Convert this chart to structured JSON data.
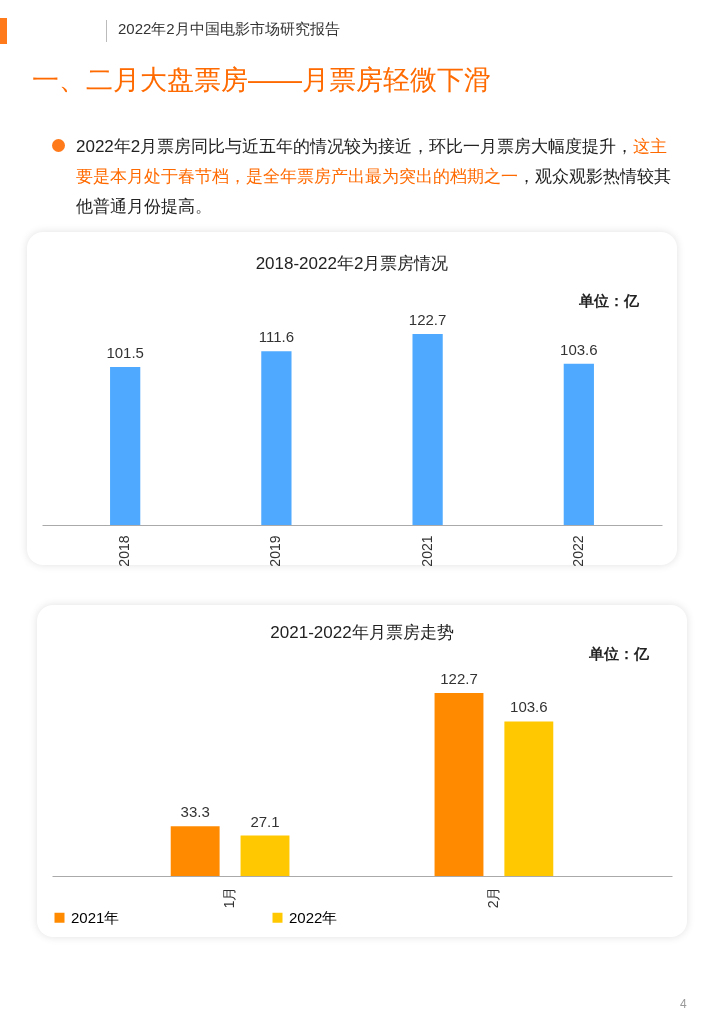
{
  "chart_data": [
    {
      "type": "bar",
      "title": "2018-2022年2月票房情况",
      "categories": [
        "2018",
        "2019",
        "2021",
        "2022"
      ],
      "values": [
        101.5,
        111.6,
        122.7,
        103.6
      ],
      "color": "#4faaff",
      "data_labels": true,
      "annotations": [
        "2022年2月中国电影市场研究报告",
        "一、二月大盘票房——月票房轻微下滑",
        "2022年2月票房同比与近五年的情况较为接近，环比一月票房大幅度提升，",
        "这主要是本月处于春节档，是全年票房产出最为突出的档期之一",
        "，观众观影热情较其他普通月份提高。",
        "单位：亿"
      ]
    },
    {
      "type": "bar",
      "title": "2021-2022年月票房走势",
      "categories": [
        "1月",
        "2月"
      ],
      "data_labels": true,
      "legend": "bottom",
      "series": [
        {
          "name": "2021年",
          "color": "#ff8a00",
          "values": [
            33.3,
            122.7
          ]
        },
        {
          "name": "2022年",
          "color": "#ffc800",
          "values": [
            27.1,
            103.6
          ]
        }
      ],
      "annotations": [
        "单位：亿",
        "4"
      ]
    }
  ]
}
